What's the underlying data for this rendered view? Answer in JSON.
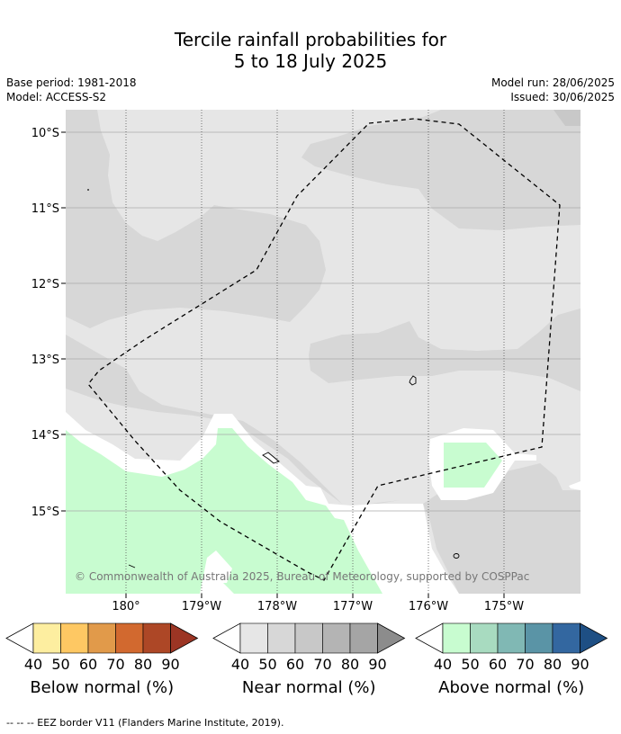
{
  "title_line1": "Tercile rainfall probabilities for",
  "title_line2": "5 to 18 July 2025",
  "base_period": "Base period: 1981-2018",
  "model": "Model: ACCESS-S2",
  "model_run": "Model run: 28/06/2025",
  "issued": "Issued: 30/06/2025",
  "copyright": "© Commonwealth of Australia 2025, Bureau of Meteorology, supported by COSPPac",
  "lat_labels": [
    "10°S",
    "11°S",
    "12°S",
    "13°S",
    "14°S",
    "15°S"
  ],
  "lon_labels": [
    "180°",
    "179°W",
    "178°W",
    "177°W",
    "176°W",
    "175°W"
  ],
  "colorbars": [
    {
      "title": "Below normal (%)",
      "colors": [
        "#fdeea0",
        "#fec863",
        "#e19a4a",
        "#d2692f",
        "#ad4726",
        "#9c3524"
      ],
      "ticks": [
        "40",
        "50",
        "60",
        "70",
        "80",
        "90"
      ]
    },
    {
      "title": "Near normal (%)",
      "colors": [
        "#e6e6e6",
        "#d7d7d7",
        "#c8c8c8",
        "#b4b4b4",
        "#a5a5a5",
        "#8c8c8c"
      ],
      "ticks": [
        "40",
        "50",
        "60",
        "70",
        "80",
        "90"
      ]
    },
    {
      "title": "Above normal (%)",
      "colors": [
        "#c8fcd0",
        "#a8dbc0",
        "#80b8b4",
        "#5a94a6",
        "#3367a0",
        "#1e4f84"
      ],
      "ticks": [
        "40",
        "50",
        "60",
        "70",
        "80",
        "90"
      ]
    }
  ],
  "footnote": "-- -- -- EEZ border V11 (Flanders Marine Institute, 2019).",
  "colors": {
    "near_light": "#e6e6e6",
    "near_mid": "#d7d7d7",
    "above_light": "#c8fcd0",
    "background": "#ffffff"
  }
}
